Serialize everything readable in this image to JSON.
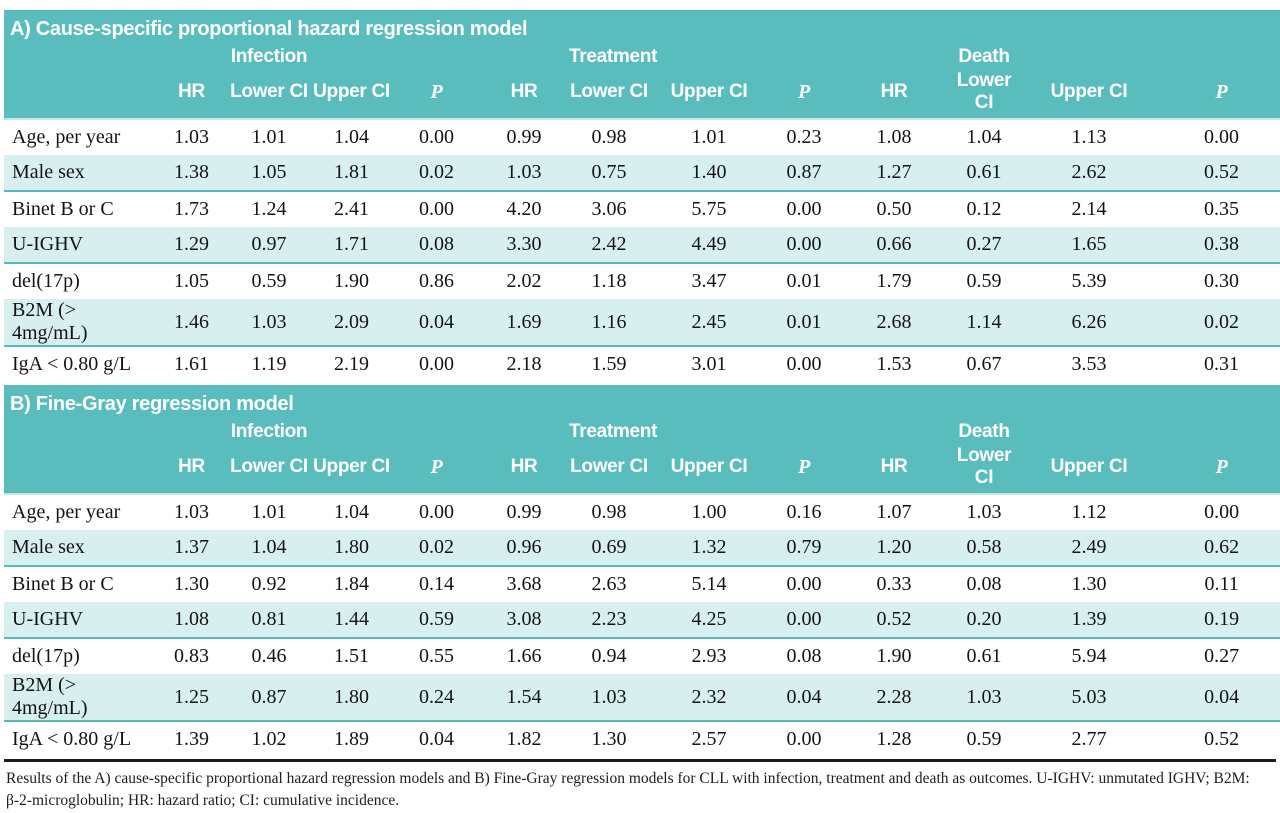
{
  "theme": {
    "header_teal": "#5abdbd",
    "shaded_row": "#d7efee",
    "row_separator": "#55b9b9",
    "header_text": "#ffffff",
    "body_text": "#141414"
  },
  "chart_data": {
    "type": "table",
    "outcome_groups": [
      "Infection",
      "Treatment",
      "Death"
    ],
    "column_headers": [
      "HR",
      "Lower CI",
      "Upper CI",
      "P"
    ],
    "sections": [
      {
        "title": "A) Cause-specific proportional hazard regression model",
        "rows": [
          {
            "label": "Age, per year",
            "values": [
              "1.03",
              "1.01",
              "1.04",
              "0.00",
              "0.99",
              "0.98",
              "1.01",
              "0.23",
              "1.08",
              "1.04",
              "1.13",
              "0.00"
            ]
          },
          {
            "label": "Male sex",
            "values": [
              "1.38",
              "1.05",
              "1.81",
              "0.02",
              "1.03",
              "0.75",
              "1.40",
              "0.87",
              "1.27",
              "0.61",
              "2.62",
              "0.52"
            ]
          },
          {
            "label": "Binet B or C",
            "values": [
              "1.73",
              "1.24",
              "2.41",
              "0.00",
              "4.20",
              "3.06",
              "5.75",
              "0.00",
              "0.50",
              "0.12",
              "2.14",
              "0.35"
            ]
          },
          {
            "label": "U-IGHV",
            "values": [
              "1.29",
              "0.97",
              "1.71",
              "0.08",
              "3.30",
              "2.42",
              "4.49",
              "0.00",
              "0.66",
              "0.27",
              "1.65",
              "0.38"
            ]
          },
          {
            "label": "del(17p)",
            "values": [
              "1.05",
              "0.59",
              "1.90",
              "0.86",
              "2.02",
              "1.18",
              "3.47",
              "0.01",
              "1.79",
              "0.59",
              "5.39",
              "0.30"
            ]
          },
          {
            "label": "B2M (> 4mg/mL)",
            "values": [
              "1.46",
              "1.03",
              "2.09",
              "0.04",
              "1.69",
              "1.16",
              "2.45",
              "0.01",
              "2.68",
              "1.14",
              "6.26",
              "0.02"
            ]
          },
          {
            "label": "IgA < 0.80 g/L",
            "values": [
              "1.61",
              "1.19",
              "2.19",
              "0.00",
              "2.18",
              "1.59",
              "3.01",
              "0.00",
              "1.53",
              "0.67",
              "3.53",
              "0.31"
            ]
          }
        ]
      },
      {
        "title": "B) Fine-Gray regression model",
        "rows": [
          {
            "label": "Age, per year",
            "values": [
              "1.03",
              "1.01",
              "1.04",
              "0.00",
              "0.99",
              "0.98",
              "1.00",
              "0.16",
              "1.07",
              "1.03",
              "1.12",
              "0.00"
            ]
          },
          {
            "label": "Male sex",
            "values": [
              "1.37",
              "1.04",
              "1.80",
              "0.02",
              "0.96",
              "0.69",
              "1.32",
              "0.79",
              "1.20",
              "0.58",
              "2.49",
              "0.62"
            ]
          },
          {
            "label": "Binet B or C",
            "values": [
              "1.30",
              "0.92",
              "1.84",
              "0.14",
              "3.68",
              "2.63",
              "5.14",
              "0.00",
              "0.33",
              "0.08",
              "1.30",
              "0.11"
            ]
          },
          {
            "label": "U-IGHV",
            "values": [
              "1.08",
              "0.81",
              "1.44",
              "0.59",
              "3.08",
              "2.23",
              "4.25",
              "0.00",
              "0.52",
              "0.20",
              "1.39",
              "0.19"
            ]
          },
          {
            "label": "del(17p)",
            "values": [
              "0.83",
              "0.46",
              "1.51",
              "0.55",
              "1.66",
              "0.94",
              "2.93",
              "0.08",
              "1.90",
              "0.61",
              "5.94",
              "0.27"
            ]
          },
          {
            "label": "B2M (> 4mg/mL)",
            "values": [
              "1.25",
              "0.87",
              "1.80",
              "0.24",
              "1.54",
              "1.03",
              "2.32",
              "0.04",
              "2.28",
              "1.03",
              "5.03",
              "0.04"
            ]
          },
          {
            "label": "IgA < 0.80 g/L",
            "values": [
              "1.39",
              "1.02",
              "1.89",
              "0.04",
              "1.82",
              "1.30",
              "2.57",
              "0.00",
              "1.28",
              "0.59",
              "2.77",
              "0.52"
            ]
          }
        ]
      }
    ]
  },
  "caption": "Results of the A) cause-specific proportional hazard regression models and B) Fine-Gray regression models for CLL with infection, treatment and death as outcomes. U-IGHV: unmutated IGHV; B2M: β-2-microglobulin; HR: hazard ratio; CI: cumulative incidence."
}
